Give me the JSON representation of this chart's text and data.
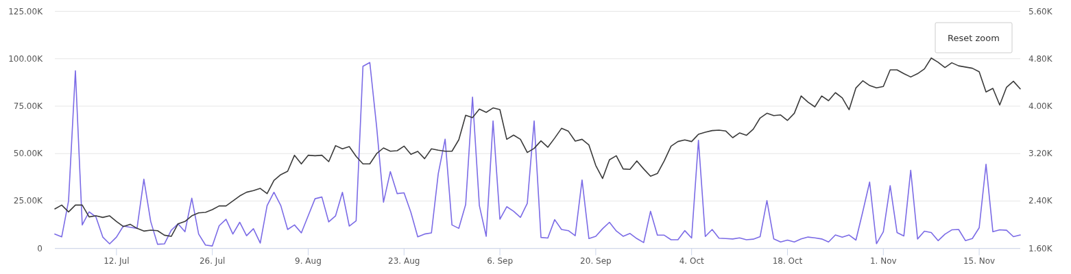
{
  "chart_data": {
    "type": "line",
    "x": [
      "--07-03",
      "--07-04",
      "--07-05",
      "--07-06",
      "--07-07",
      "--07-08",
      "--07-09",
      "--07-10",
      "--07-11",
      "--07-12",
      "--07-13",
      "--07-14",
      "--07-15",
      "--07-16",
      "--07-17",
      "--07-18",
      "--07-19",
      "--07-20",
      "--07-21",
      "--07-22",
      "--07-23",
      "--07-24",
      "--07-25",
      "--07-26",
      "--07-27",
      "--07-28",
      "--07-29",
      "--07-30",
      "--07-31",
      "--08-01",
      "--08-02",
      "--08-03",
      "--08-04",
      "--08-05",
      "--08-06",
      "--08-07",
      "--08-08",
      "--08-09",
      "--08-10",
      "--08-11",
      "--08-12",
      "--08-13",
      "--08-14",
      "--08-15",
      "--08-16",
      "--08-17",
      "--08-18",
      "--08-19",
      "--08-20",
      "--08-21",
      "--08-22",
      "--08-23",
      "--08-24",
      "--08-25",
      "--08-26",
      "--08-27",
      "--08-28",
      "--08-29",
      "--08-30",
      "--08-31",
      "--09-01",
      "--09-02",
      "--09-03",
      "--09-04",
      "--09-05",
      "--09-06",
      "--09-07",
      "--09-08",
      "--09-09",
      "--09-10",
      "--09-11",
      "--09-12",
      "--09-13",
      "--09-14",
      "--09-15",
      "--09-16",
      "--09-17",
      "--09-18",
      "--09-19",
      "--09-20",
      "--09-21",
      "--09-22",
      "--09-23",
      "--09-24",
      "--09-25",
      "--09-26",
      "--09-27",
      "--09-28",
      "--09-29",
      "--09-30",
      "--10-01",
      "--10-02",
      "--10-03",
      "--10-04",
      "--10-05",
      "--10-06",
      "--10-07",
      "--10-08",
      "--10-09",
      "--10-10",
      "--10-11",
      "--10-12",
      "--10-13",
      "--10-14",
      "--10-15",
      "--10-16",
      "--10-17",
      "--10-18",
      "--10-19",
      "--10-20",
      "--10-21",
      "--10-22",
      "--10-23",
      "--10-24",
      "--10-25",
      "--10-26",
      "--10-27",
      "--10-28",
      "--10-29",
      "--10-30",
      "--10-31",
      "--11-01",
      "--11-02",
      "--11-03",
      "--11-04",
      "--11-05",
      "--11-06",
      "--11-07",
      "--11-08",
      "--11-09",
      "--11-10",
      "--11-11",
      "--11-12",
      "--11-13",
      "--11-14",
      "--11-15",
      "--11-16",
      "--11-17",
      "--11-18",
      "--11-19",
      "--11-20",
      "--11-21"
    ],
    "series": [
      {
        "color": "#7b6be6",
        "values": [
          7600,
          6100,
          25000,
          93700,
          12400,
          19300,
          16600,
          6000,
          2400,
          6000,
          11800,
          11200,
          10600,
          36500,
          14200,
          2200,
          2400,
          9600,
          13000,
          8800,
          26500,
          7600,
          1800,
          1300,
          12000,
          15400,
          7600,
          13800,
          6700,
          10400,
          2800,
          22600,
          29600,
          22600,
          10000,
          12400,
          8200,
          17200,
          26200,
          27100,
          14000,
          17200,
          29600,
          11800,
          14600,
          96000,
          98000,
          64000,
          24400,
          40500,
          28900,
          29300,
          19000,
          6100,
          7600,
          8200,
          39500,
          57600,
          12400,
          10600,
          23200,
          79800,
          22600,
          6400,
          67200,
          15400,
          22000,
          19600,
          16400,
          23800,
          67200,
          5800,
          5500,
          15200,
          10000,
          9400,
          6700,
          36100,
          5200,
          6400,
          10400,
          13800,
          9200,
          6400,
          7900,
          5200,
          3100,
          19600,
          7000,
          7000,
          4600,
          4600,
          9400,
          5500,
          57000,
          6300,
          10000,
          5400,
          5200,
          5000,
          5600,
          4600,
          4900,
          6200,
          25200,
          5000,
          3400,
          4400,
          3400,
          5000,
          6000,
          5600,
          5000,
          3400,
          7100,
          5900,
          7100,
          4400,
          19400,
          35000,
          2500,
          8800,
          33100,
          8400,
          6600,
          41200,
          5000,
          9100,
          8400,
          4100,
          7500,
          9800,
          10000,
          4100,
          5200,
          10900,
          44400,
          8800,
          9800,
          9600,
          6200,
          7100
        ]
      },
      {
        "color": "#3a3a3a",
        "axis": "y2",
        "values": [
          2267,
          2332,
          2216,
          2332,
          2332,
          2132,
          2151,
          2124,
          2151,
          2055,
          1970,
          2008,
          1939,
          1893,
          1908,
          1900,
          1823,
          1804,
          2016,
          2055,
          2151,
          2201,
          2209,
          2255,
          2317,
          2317,
          2400,
          2486,
          2548,
          2575,
          2613,
          2525,
          2748,
          2845,
          2902,
          3172,
          3026,
          3172,
          3164,
          3172,
          3064,
          3334,
          3280,
          3318,
          3153,
          3026,
          3026,
          3200,
          3295,
          3240,
          3249,
          3326,
          3187,
          3238,
          3114,
          3280,
          3257,
          3240,
          3240,
          3434,
          3846,
          3807,
          3950,
          3896,
          3970,
          3942,
          3441,
          3511,
          3441,
          3218,
          3288,
          3415,
          3307,
          3461,
          3626,
          3577,
          3411,
          3441,
          3345,
          2999,
          2780,
          3095,
          3164,
          2941,
          2934,
          3076,
          2941,
          2818,
          2864,
          3076,
          3326,
          3403,
          3430,
          3403,
          3526,
          3560,
          3588,
          3596,
          3580,
          3468,
          3548,
          3508,
          3612,
          3800,
          3880,
          3840,
          3852,
          3760,
          3880,
          4172,
          4068,
          3988,
          4172,
          4092,
          4228,
          4140,
          3940,
          4308,
          4428,
          4348,
          4308,
          4332,
          4612,
          4612,
          4548,
          4492,
          4548,
          4628,
          4812,
          4740,
          4652,
          4732,
          4680,
          4660,
          4640,
          4580,
          4240,
          4300,
          4020,
          4320,
          4420,
          4292
        ]
      }
    ],
    "xlim": [
      "--07-03",
      "--11-21"
    ],
    "xticks": [
      {
        "value": "--07-12",
        "label": "12. Jul"
      },
      {
        "value": "--07-26",
        "label": "26. Jul"
      },
      {
        "value": "--08-09",
        "label": "9. Aug"
      },
      {
        "value": "--08-23",
        "label": "23. Aug"
      },
      {
        "value": "--09-06",
        "label": "6. Sep"
      },
      {
        "value": "--09-20",
        "label": "20. Sep"
      },
      {
        "value": "--10-04",
        "label": "4. Oct"
      },
      {
        "value": "--10-18",
        "label": "18. Oct"
      },
      {
        "value": "--11-01",
        "label": "1. Nov"
      },
      {
        "value": "--11-15",
        "label": "15. Nov"
      }
    ],
    "ylim": [
      0,
      125000
    ],
    "yticks": [
      0,
      {
        "value": 25000,
        "label": "25.00K"
      },
      {
        "value": 50000,
        "label": "50.00K"
      },
      {
        "value": 75000,
        "label": "75.00K"
      },
      {
        "value": 100000,
        "label": "100.00K"
      },
      {
        "value": 125000,
        "label": "125.00K"
      }
    ],
    "y2lim": [
      1600,
      5600
    ],
    "y2ticks": [
      {
        "value": 1600,
        "label": "1.60K"
      },
      {
        "value": 2400,
        "label": "2.40K"
      },
      {
        "value": 3200,
        "label": "3.20K"
      },
      {
        "value": 4000,
        "label": "4.00K"
      },
      {
        "value": 4800,
        "label": "4.80K"
      },
      {
        "value": 5600,
        "label": "5.60K"
      }
    ],
    "grid": "y",
    "annotations": [
      "Reset zoom"
    ]
  }
}
